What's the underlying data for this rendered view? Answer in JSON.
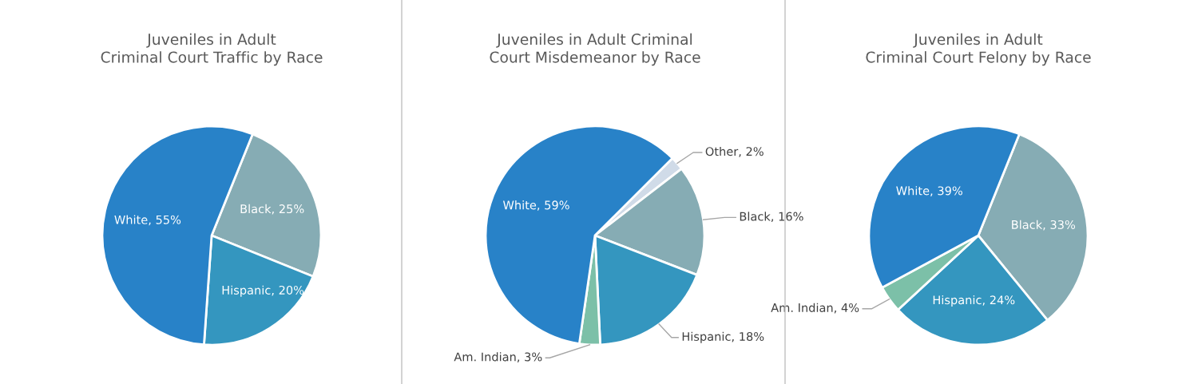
{
  "chart_data": [
    {
      "type": "pie",
      "title": "Juveniles in Adult Criminal Court Traffic by Race",
      "categories": [
        "Black",
        "Hispanic",
        "White"
      ],
      "values": [
        25,
        20,
        55
      ],
      "value_labels": [
        "25%",
        "20%",
        "55%"
      ],
      "colors": [
        "#86acb4",
        "#3496bf",
        "#2882c8"
      ]
    },
    {
      "type": "pie",
      "title": "Juveniles in Adult Criminal Court Misdemeanor by Race",
      "categories": [
        "Other",
        "Black",
        "Hispanic",
        "Am. Indian",
        "White"
      ],
      "values": [
        2,
        16,
        18,
        3,
        59
      ],
      "value_labels": [
        "2%",
        "16%",
        "18%",
        "3%",
        "59%"
      ],
      "colors": [
        "#d0dbe8",
        "#86acb4",
        "#3496bf",
        "#7cc0a8",
        "#2882c8"
      ]
    },
    {
      "type": "pie",
      "title": "Juveniles in Adult Criminal Court Felony by Race",
      "categories": [
        "Black",
        "Hispanic",
        "Am. Indian",
        "White"
      ],
      "values": [
        33,
        24,
        4,
        39
      ],
      "value_labels": [
        "33%",
        "24%",
        "4%",
        "39%"
      ],
      "colors": [
        "#86acb4",
        "#3496bf",
        "#7cc0a8",
        "#2882c8"
      ]
    }
  ]
}
